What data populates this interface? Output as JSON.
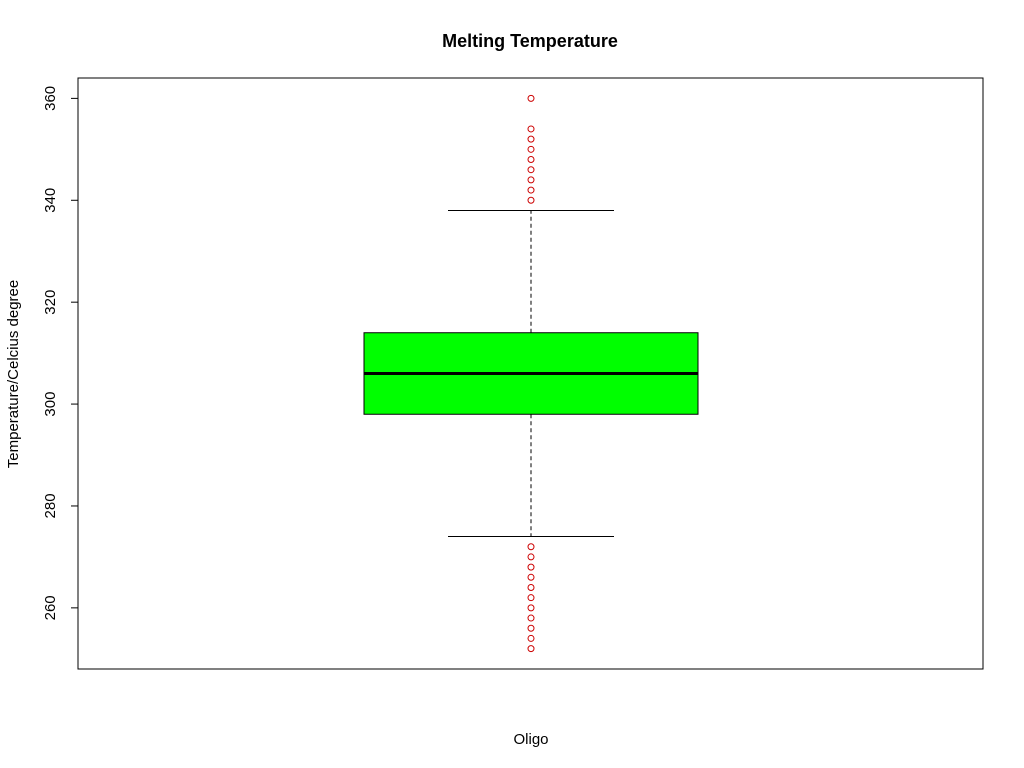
{
  "chart_data": {
    "type": "box",
    "title": "Melting Temperature",
    "xlabel": "Oligo",
    "ylabel": "Temperature/Celcius degree",
    "ylim": [
      248,
      364
    ],
    "yticks": [
      260,
      280,
      300,
      320,
      340,
      360
    ],
    "grid": false,
    "series": [
      {
        "min": 274,
        "q1": 298,
        "median": 306,
        "q3": 314,
        "max": 338,
        "outliers": [
          252,
          254,
          256,
          258,
          260,
          262,
          264,
          266,
          268,
          270,
          272,
          340,
          342,
          344,
          346,
          348,
          350,
          352,
          354,
          360
        ]
      }
    ],
    "colors": {
      "box_fill": "#00ff00",
      "outlier": "#cc0000",
      "line": "#000000"
    }
  }
}
